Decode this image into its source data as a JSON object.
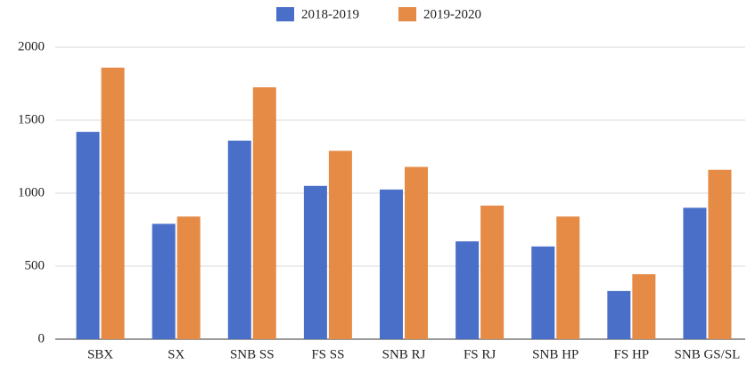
{
  "chart_data": {
    "type": "bar",
    "categories": [
      "SBX",
      "SX",
      "SNB SS",
      "FS SS",
      "SNB RJ",
      "FS RJ",
      "SNB HP",
      "FS HP",
      "SNB GS/SL"
    ],
    "series": [
      {
        "name": "2018-2019",
        "color": "#4a6fc9",
        "values": [
          1420,
          790,
          1360,
          1050,
          1025,
          670,
          635,
          330,
          900
        ]
      },
      {
        "name": "2019-2020",
        "color": "#e58b45",
        "values": [
          1860,
          840,
          1725,
          1290,
          1180,
          915,
          840,
          445,
          1160
        ]
      }
    ],
    "ylim": [
      0,
      2000
    ],
    "yticks": [
      0,
      500,
      1000,
      1500,
      2000
    ],
    "grid": true,
    "legend": "top"
  }
}
